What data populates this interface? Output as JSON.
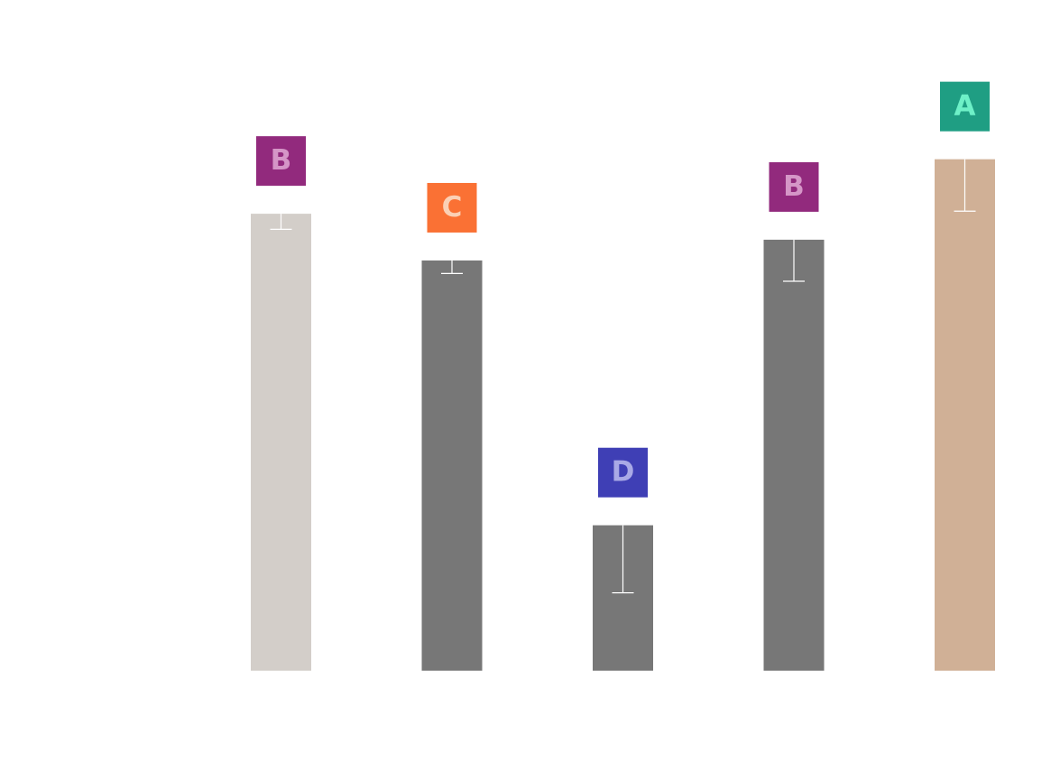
{
  "chart_data": {
    "type": "bar",
    "title": "",
    "xlabel": "",
    "ylabel": "",
    "ylim": [
      0,
      100
    ],
    "grid": false,
    "legend": "none",
    "categories": [
      "",
      "",
      "",
      "",
      ""
    ],
    "values": [
      88.0,
      79.0,
      28.0,
      83.0,
      98.5
    ],
    "errors": [
      3.0,
      2.5,
      13.0,
      8.0,
      10.0
    ],
    "bar_colors": [
      "#d3cec9",
      "#777777",
      "#777777",
      "#777777",
      "#d0b096"
    ],
    "significance": [
      {
        "letter": "B",
        "color": "#922a7d",
        "text_color": "#d596c7"
      },
      {
        "letter": "C",
        "color": "#fa7134",
        "text_color": "#fbd0b5"
      },
      {
        "letter": "D",
        "color": "#3f3fb5",
        "text_color": "#a9a9e6"
      },
      {
        "letter": "B",
        "color": "#922a7d",
        "text_color": "#d596c7"
      },
      {
        "letter": "A",
        "color": "#1f9e83",
        "text_color": "#6ef0c7"
      }
    ],
    "error_bar_color": "#ffffff"
  }
}
